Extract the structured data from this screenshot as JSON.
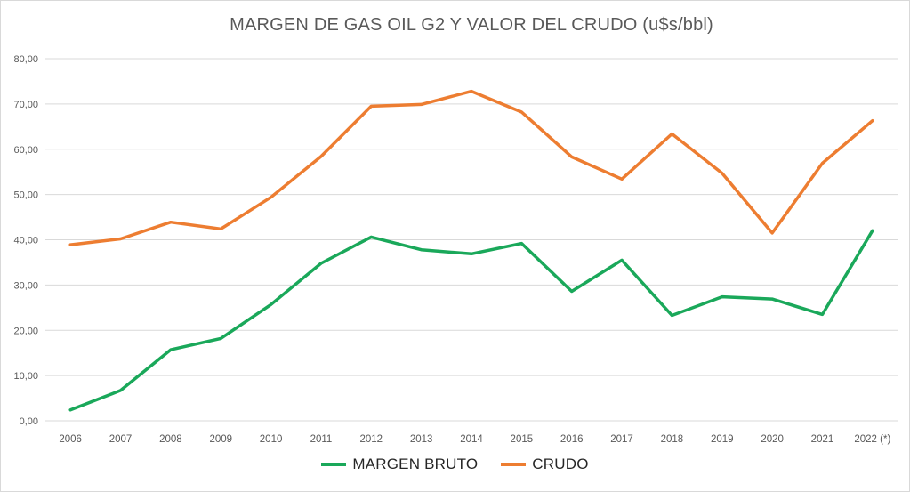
{
  "chart_data": {
    "type": "line",
    "title": "MARGEN DE GAS OIL G2 Y VALOR DEL CRUDO (u$s/bbl)",
    "categories": [
      "2006",
      "2007",
      "2008",
      "2009",
      "2010",
      "2011",
      "2012",
      "2013",
      "2014",
      "2015",
      "2016",
      "2017",
      "2018",
      "2019",
      "2020",
      "2021",
      "2022 (*)"
    ],
    "series": [
      {
        "name": "MARGEN BRUTO",
        "color": "#1AA85A",
        "values": [
          2.4,
          6.7,
          15.7,
          18.2,
          25.7,
          34.8,
          40.6,
          37.8,
          36.9,
          39.2,
          28.6,
          35.5,
          23.3,
          27.4,
          26.9,
          23.5,
          42.0
        ]
      },
      {
        "name": "CRUDO",
        "color": "#ED7D31",
        "values": [
          38.9,
          40.2,
          43.9,
          42.4,
          49.4,
          58.4,
          69.5,
          69.9,
          72.8,
          68.2,
          58.3,
          53.4,
          63.4,
          54.7,
          41.5,
          56.9,
          66.3
        ]
      }
    ],
    "ylim": [
      0,
      80
    ],
    "y_ticks": [
      "0,00",
      "10,00",
      "20,00",
      "30,00",
      "40,00",
      "50,00",
      "60,00",
      "70,00",
      "80,00"
    ],
    "grid": "horizontal",
    "legend_position": "bottom",
    "xlabel": "",
    "ylabel": ""
  },
  "style": {
    "grid_color": "#D9D9D9",
    "axis_text_color": "#595959",
    "title_color": "#595959",
    "legend_text_color": "#262626",
    "background": "#FFFFFF",
    "border_color": "#D9D9D9",
    "line_width": 3.5
  }
}
